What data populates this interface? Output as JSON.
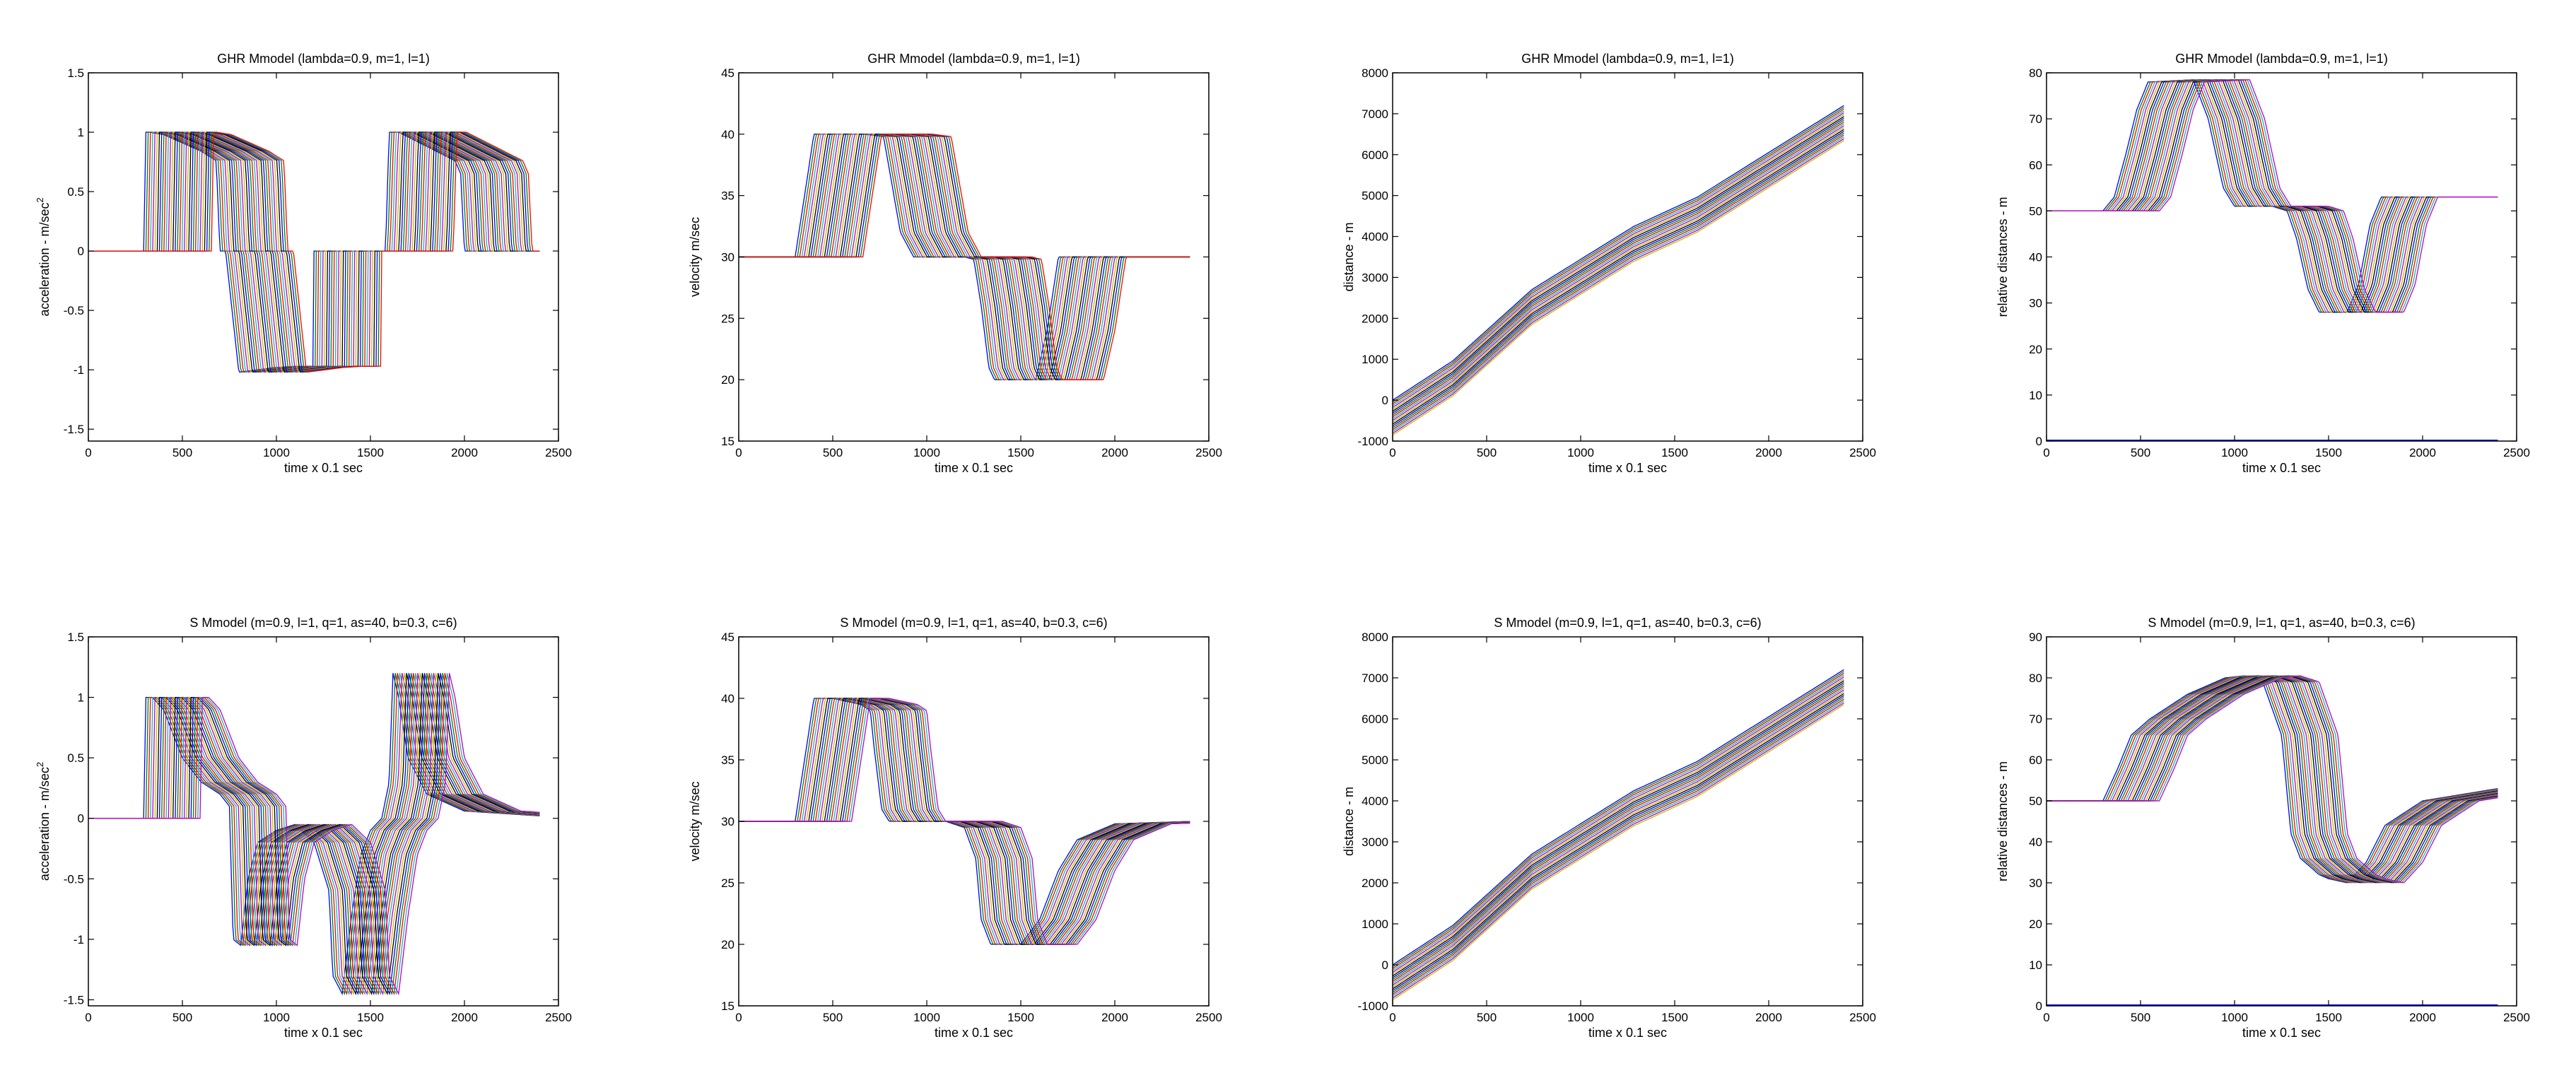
{
  "colors": [
    "#0000ff",
    "#008000",
    "#ff0000",
    "#00bfbf",
    "#bf00bf",
    "#bfbf00",
    "#000000"
  ],
  "chart_data": [
    {
      "type": "line",
      "title": "GHR Mmodel (lambda=0.9, m=1, l=1)",
      "xlabel": "time x 0.1 sec",
      "ylabel": "acceleration - m/sec",
      "ylabel_sup": "2",
      "xlim": [
        0,
        2500
      ],
      "ylim": [
        -1.6,
        1.5
      ],
      "xticks": [
        0,
        500,
        1000,
        1500,
        2000,
        2500
      ],
      "yticks": [
        -1.5,
        -1,
        -0.5,
        0,
        0.5,
        1,
        1.5
      ],
      "ytick_labels": [
        "-1.5",
        "-1",
        "-0.5",
        "0",
        "0.5",
        "1",
        "1.5"
      ],
      "n_series": 31,
      "series_lag": 12,
      "x": [
        0,
        295,
        305,
        325,
        400,
        500,
        600,
        680,
        700,
        730,
        800,
        900,
        1000,
        1100,
        1195,
        1200,
        1300,
        1400,
        1450,
        1500,
        1580,
        1600,
        1650,
        1750,
        1850,
        1950,
        1980,
        2000,
        2050,
        2100,
        2400
      ],
      "values": [
        0,
        0,
        1.0,
        1.0,
        0.98,
        0.91,
        0.84,
        0.76,
        0,
        0,
        -1.02,
        -1.0,
        -0.98,
        -0.97,
        -0.97,
        0,
        0,
        0,
        0,
        0,
        0,
        1.0,
        1.0,
        0.92,
        0.84,
        0.76,
        0.65,
        0,
        0,
        0,
        0
      ],
      "grid": false
    },
    {
      "type": "line",
      "title": "GHR Mmodel (lambda=0.9, m=1, l=1)",
      "xlabel": "time x 0.1 sec",
      "ylabel": "velocity m/sec",
      "xlim": [
        0,
        2500
      ],
      "ylim": [
        15,
        45
      ],
      "xticks": [
        0,
        500,
        1000,
        1500,
        2000,
        2500
      ],
      "yticks": [
        15,
        20,
        25,
        30,
        35,
        40,
        45
      ],
      "ytick_labels": [
        "15",
        "20",
        "25",
        "30",
        "35",
        "40",
        "45"
      ],
      "n_series": 31,
      "series_lag": 12,
      "x": [
        0,
        300,
        400,
        560,
        670,
        770,
        860,
        930,
        1000,
        1200,
        1250,
        1290,
        1330,
        1360,
        1500,
        1580,
        1640,
        1700,
        2400
      ],
      "values": [
        30,
        30,
        40,
        40,
        40,
        39.8,
        32,
        30,
        30,
        30,
        29.8,
        26,
        21,
        20,
        20,
        20,
        24,
        30,
        30
      ],
      "grid": false
    },
    {
      "type": "line",
      "title": "GHR Mmodel (lambda=0.9, m=1, l=1)",
      "xlabel": "time x 0.1 sec",
      "ylabel": "distance - m",
      "xlim": [
        0,
        2500
      ],
      "ylim": [
        -1000,
        8000
      ],
      "xticks": [
        0,
        500,
        1000,
        1500,
        2000,
        2500
      ],
      "yticks": [
        -1000,
        0,
        1000,
        2000,
        3000,
        4000,
        5000,
        6000,
        7000,
        8000
      ],
      "ytick_labels": [
        "-1000",
        "0",
        "1000",
        "2000",
        "3000",
        "4000",
        "5000",
        "6000",
        "7000",
        "8000"
      ],
      "n_series": 20,
      "x": [
        0,
        320,
        740,
        1280,
        1620,
        2400
      ],
      "values": [
        0,
        960,
        2700,
        4240,
        4960,
        7200
      ],
      "offset_step": 45,
      "grid": false
    },
    {
      "type": "line",
      "title": "GHR Mmodel (lambda=0.9, m=1, l=1)",
      "xlabel": "time x 0.1 sec",
      "ylabel": "relative distances - m",
      "xlim": [
        0,
        2500
      ],
      "ylim": [
        0,
        80
      ],
      "xticks": [
        0,
        500,
        1000,
        1500,
        2000,
        2500
      ],
      "yticks": [
        0,
        10,
        20,
        30,
        40,
        50,
        60,
        70,
        80
      ],
      "ytick_labels": [
        "0",
        "10",
        "20",
        "30",
        "40",
        "50",
        "60",
        "70",
        "80"
      ],
      "n_series": 26,
      "series_lag": 12,
      "x": [
        0,
        300,
        360,
        420,
        480,
        540,
        780,
        860,
        940,
        1000,
        1200,
        1280,
        1330,
        1390,
        1450,
        1600,
        1660,
        1720,
        1780,
        2400
      ],
      "values": [
        50,
        50,
        53,
        62,
        72,
        78,
        78.5,
        70,
        55,
        51,
        51,
        50,
        44,
        33,
        28,
        28,
        34,
        47,
        53,
        53
      ],
      "zero_line": true,
      "grid": false
    },
    {
      "type": "line",
      "title": "S Mmodel (m=0.9, l=1, q=1, as=40, b=0.3, c=6)",
      "xlabel": "time x 0.1 sec",
      "ylabel": "acceleration - m/sec",
      "ylabel_sup": "2",
      "xlim": [
        0,
        2500
      ],
      "ylim": [
        -1.55,
        1.5
      ],
      "xticks": [
        0,
        500,
        1000,
        1500,
        2000,
        2500
      ],
      "yticks": [
        -1.5,
        -1,
        -0.5,
        0,
        0.5,
        1,
        1.5
      ],
      "ytick_labels": [
        "-1.5",
        "-1",
        "-0.5",
        "0",
        "0.5",
        "1",
        "1.5"
      ],
      "n_series": 26,
      "series_lag": 12,
      "x": [
        0,
        295,
        305,
        340,
        400,
        450,
        500,
        600,
        700,
        750,
        770,
        810,
        850,
        900,
        1000,
        1100,
        1200,
        1280,
        1300,
        1350,
        1400,
        1450,
        1500,
        1560,
        1600,
        1620,
        1650,
        1700,
        1800,
        2000,
        2400
      ],
      "values": [
        0,
        0,
        1.0,
        1.0,
        0.9,
        0.7,
        0.5,
        0.3,
        0.2,
        0.1,
        -1.0,
        -1.05,
        -0.5,
        -0.2,
        -0.1,
        -0.05,
        -0.2,
        -0.6,
        -1.3,
        -1.45,
        -0.8,
        -0.3,
        -0.1,
        0,
        0.3,
        1.2,
        1.0,
        0.5,
        0.2,
        0.06,
        0.02
      ],
      "grid": false
    },
    {
      "type": "line",
      "title": "S Mmodel (m=0.9, l=1, q=1, as=40, b=0.3, c=6)",
      "xlabel": "time x 0.1 sec",
      "ylabel": "velocity m/sec",
      "xlim": [
        0,
        2500
      ],
      "ylim": [
        15,
        45
      ],
      "xticks": [
        0,
        500,
        1000,
        1500,
        2000,
        2500
      ],
      "yticks": [
        15,
        20,
        25,
        30,
        35,
        40,
        45
      ],
      "ytick_labels": [
        "15",
        "20",
        "25",
        "30",
        "35",
        "40",
        "45"
      ],
      "n_series": 26,
      "series_lag": 12,
      "x": [
        0,
        300,
        350,
        400,
        500,
        650,
        700,
        720,
        760,
        800,
        900,
        1000,
        1100,
        1200,
        1260,
        1290,
        1340,
        1400,
        1500,
        1600,
        1700,
        1800,
        2000,
        2400
      ],
      "values": [
        30,
        30,
        35,
        40,
        40,
        39.5,
        39,
        36,
        31,
        30,
        30,
        30,
        30,
        29.5,
        27,
        22,
        20,
        20,
        20,
        22,
        26,
        28.5,
        29.8,
        30
      ],
      "grid": false
    },
    {
      "type": "line",
      "title": "S Mmodel (m=0.9, l=1, q=1, as=40, b=0.3, c=6)",
      "xlabel": "time x 0.1 sec",
      "ylabel": "distance - m",
      "xlim": [
        0,
        2500
      ],
      "ylim": [
        -1000,
        8000
      ],
      "xticks": [
        0,
        500,
        1000,
        1500,
        2000,
        2500
      ],
      "yticks": [
        -1000,
        0,
        1000,
        2000,
        3000,
        4000,
        5000,
        6000,
        7000,
        8000
      ],
      "ytick_labels": [
        "-1000",
        "0",
        "1000",
        "2000",
        "3000",
        "4000",
        "5000",
        "6000",
        "7000",
        "8000"
      ],
      "n_series": 20,
      "x": [
        0,
        320,
        740,
        1280,
        1620,
        2400
      ],
      "values": [
        0,
        960,
        2700,
        4240,
        4960,
        7200
      ],
      "offset_step": 45,
      "grid": false
    },
    {
      "type": "line",
      "title": "S Mmodel (m=0.9, l=1, q=1, as=40, b=0.3, c=6)",
      "xlabel": "time x 0.1 sec",
      "ylabel": "relative distances - m",
      "xlim": [
        0,
        2500
      ],
      "ylim": [
        0,
        90
      ],
      "xticks": [
        0,
        500,
        1000,
        1500,
        2000,
        2500
      ],
      "yticks": [
        0,
        10,
        20,
        30,
        40,
        50,
        60,
        70,
        80,
        90
      ],
      "ytick_labels": [
        "0",
        "10",
        "20",
        "30",
        "40",
        "50",
        "60",
        "70",
        "80",
        "90"
      ],
      "n_series": 26,
      "series_lag": 12,
      "x": [
        0,
        300,
        380,
        450,
        550,
        650,
        750,
        850,
        950,
        1050,
        1150,
        1250,
        1300,
        1350,
        1400,
        1450,
        1500,
        1600,
        1700,
        1800,
        2000,
        2400
      ],
      "values": [
        50,
        50,
        58,
        66,
        70,
        73,
        76,
        78,
        80,
        80.5,
        79,
        66,
        42,
        36,
        34,
        32,
        31,
        30,
        35,
        44,
        50,
        53
      ],
      "zero_line": true,
      "grid": false
    }
  ]
}
